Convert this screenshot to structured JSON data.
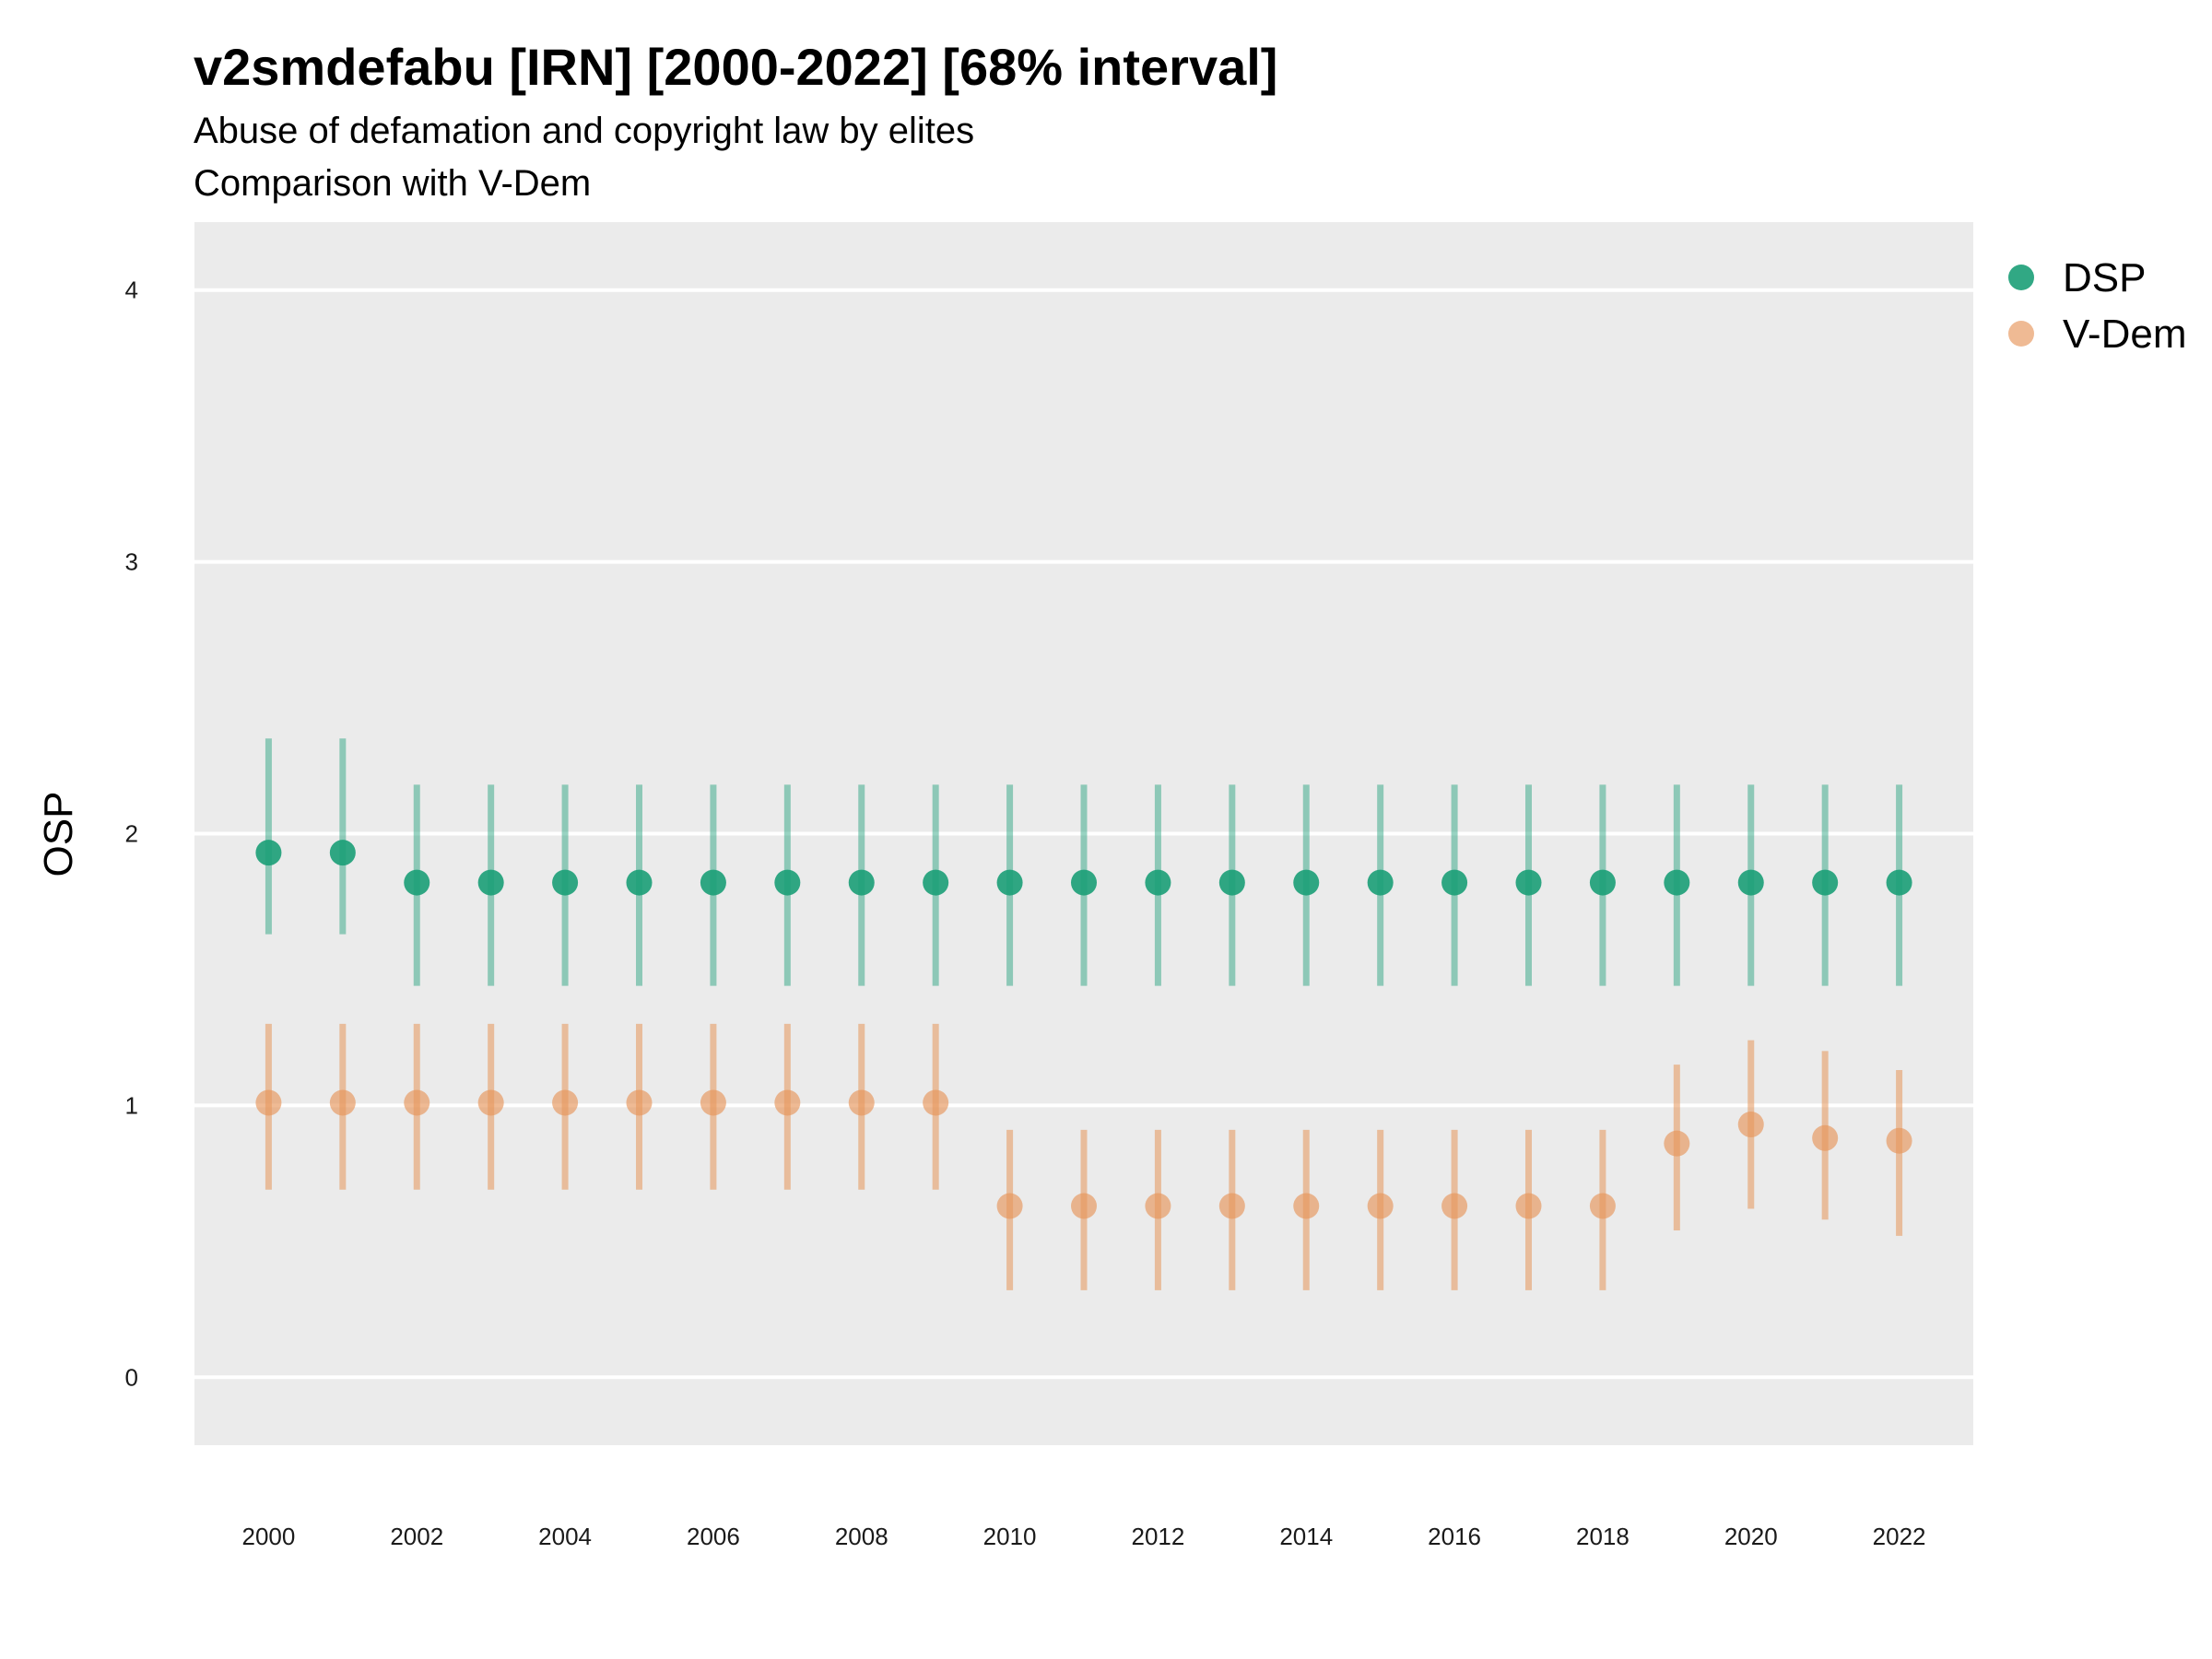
{
  "chart_data": {
    "type": "scatter",
    "title": "v2smdefabu [IRN] [2000-2022] [68% interval]",
    "subtitle_lines": [
      "Abuse of defamation and copyright law by elites",
      "Comparison with V-Dem"
    ],
    "ylabel": "OSP",
    "xlabel": "",
    "ylim": [
      -0.25,
      4.25
    ],
    "xlim": [
      1999,
      2023
    ],
    "y_ticks": [
      "0",
      "1",
      "2",
      "3",
      "4"
    ],
    "x_ticks": [
      "2000",
      "2002",
      "2004",
      "2006",
      "2008",
      "2010",
      "2012",
      "2014",
      "2016",
      "2018",
      "2020",
      "2022"
    ],
    "grid": true,
    "legend_position": "right",
    "x": [
      2000,
      2001,
      2002,
      2003,
      2004,
      2005,
      2006,
      2007,
      2008,
      2009,
      2010,
      2011,
      2012,
      2013,
      2014,
      2015,
      2016,
      2017,
      2018,
      2019,
      2020,
      2021,
      2022
    ],
    "series": [
      {
        "name": "DSP",
        "color": "#1b9e77",
        "values": [
          1.93,
          1.93,
          1.82,
          1.82,
          1.82,
          1.82,
          1.82,
          1.82,
          1.82,
          1.82,
          1.82,
          1.82,
          1.82,
          1.82,
          1.82,
          1.82,
          1.82,
          1.82,
          1.82,
          1.82,
          1.82,
          1.82,
          1.82
        ],
        "lower": [
          1.63,
          1.63,
          1.44,
          1.44,
          1.44,
          1.44,
          1.44,
          1.44,
          1.44,
          1.44,
          1.44,
          1.44,
          1.44,
          1.44,
          1.44,
          1.44,
          1.44,
          1.44,
          1.44,
          1.44,
          1.44,
          1.44,
          1.44
        ],
        "upper": [
          2.35,
          2.35,
          2.18,
          2.18,
          2.18,
          2.18,
          2.18,
          2.18,
          2.18,
          2.18,
          2.18,
          2.18,
          2.18,
          2.18,
          2.18,
          2.18,
          2.18,
          2.18,
          2.18,
          2.18,
          2.18,
          2.18,
          2.18
        ]
      },
      {
        "name": "V-Dem",
        "color": "#e6955a",
        "values": [
          1.01,
          1.01,
          1.01,
          1.01,
          1.01,
          1.01,
          1.01,
          1.01,
          1.01,
          1.01,
          0.63,
          0.63,
          0.63,
          0.63,
          0.63,
          0.63,
          0.63,
          0.63,
          0.63,
          0.86,
          0.93,
          0.88,
          0.87
        ],
        "lower": [
          0.69,
          0.69,
          0.69,
          0.69,
          0.69,
          0.69,
          0.69,
          0.69,
          0.69,
          0.69,
          0.32,
          0.32,
          0.32,
          0.32,
          0.32,
          0.32,
          0.32,
          0.32,
          0.32,
          0.54,
          0.62,
          0.58,
          0.52
        ],
        "upper": [
          1.3,
          1.3,
          1.3,
          1.3,
          1.3,
          1.3,
          1.3,
          1.3,
          1.3,
          1.3,
          0.91,
          0.91,
          0.91,
          0.91,
          0.91,
          0.91,
          0.91,
          0.91,
          0.91,
          1.15,
          1.24,
          1.2,
          1.13
        ]
      }
    ]
  }
}
